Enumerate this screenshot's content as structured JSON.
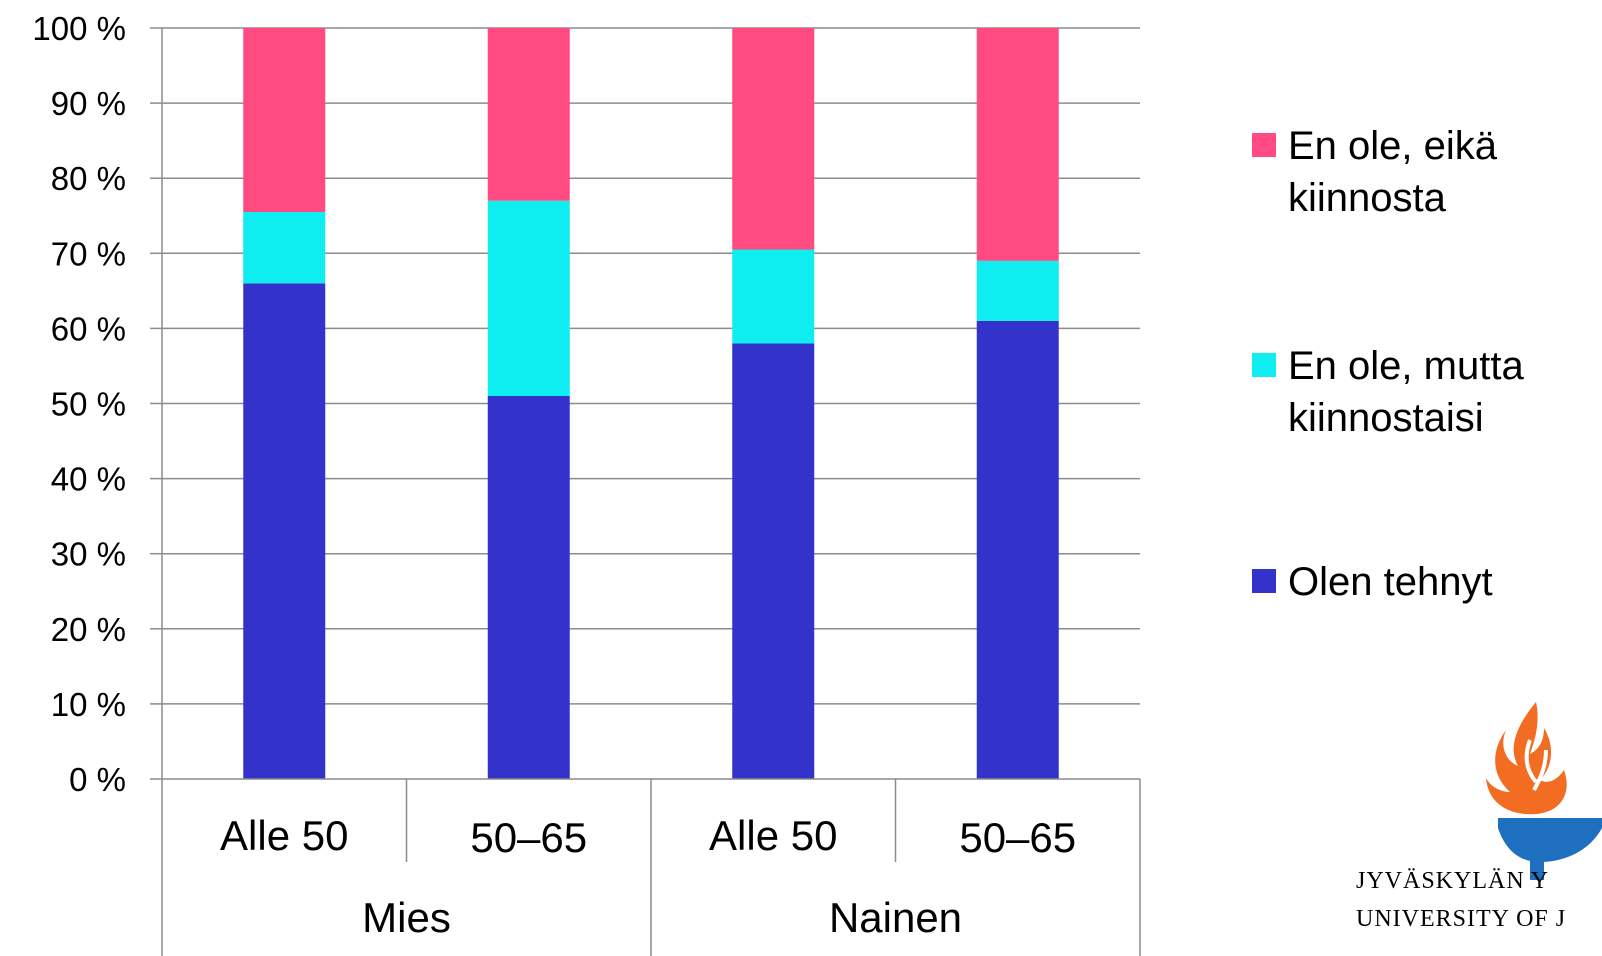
{
  "chart_data": {
    "type": "bar",
    "stacked": true,
    "normalized": true,
    "categories": [
      "Alle 50",
      "50–65",
      "Alle 50",
      "50–65"
    ],
    "groups": [
      {
        "label": "Mies",
        "categories": [
          "Alle 50",
          "50–65"
        ]
      },
      {
        "label": "Nainen",
        "categories": [
          "Alle 50",
          "50–65"
        ]
      }
    ],
    "series": [
      {
        "name": "Olen tehnyt",
        "color": "#3333CC",
        "values": [
          66,
          51,
          58,
          61
        ]
      },
      {
        "name": "En ole, mutta kiinnostaisi",
        "color": "#0EEEF0",
        "values": [
          9.5,
          26,
          12.5,
          8
        ]
      },
      {
        "name": "En ole, eikä kiinnosta",
        "color": "#FF4A82",
        "values": [
          24.5,
          23,
          29.5,
          31
        ]
      }
    ],
    "y_ticks": [
      "0 %",
      "10 %",
      "20 %",
      "30 %",
      "40 %",
      "50 %",
      "60 %",
      "70 %",
      "80 %",
      "90 %",
      "100 %"
    ],
    "ylim": [
      0,
      100
    ],
    "grid": true,
    "legend_position": "right"
  },
  "legend": {
    "items": [
      {
        "label": "En ole, eikä kiinnosta",
        "color": "#FF4A82"
      },
      {
        "label": "En ole, mutta kiinnostaisi",
        "color": "#0EEEF0"
      },
      {
        "label": "Olen tehnyt",
        "color": "#3333CC"
      }
    ]
  },
  "logo": {
    "line1": "JYVÄSKYLÄN Y",
    "line2": "UNIVERSITY OF J",
    "icon": "torch-icon",
    "flame_color": "#F26D21",
    "torch_color": "#1E6FBF"
  }
}
